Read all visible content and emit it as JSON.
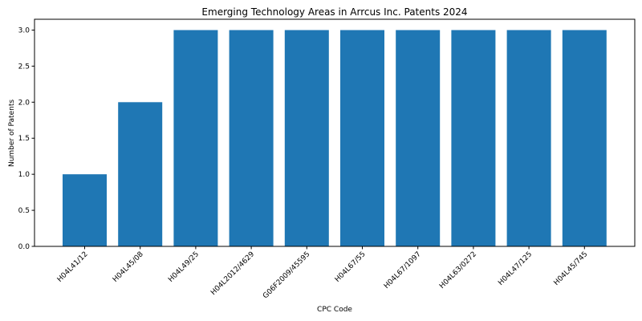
{
  "chart_data": {
    "type": "bar",
    "title": "Emerging Technology Areas in Arrcus Inc. Patents 2024",
    "xlabel": "CPC Code",
    "ylabel": "Number of Patents",
    "categories": [
      "H04L41/12",
      "H04L45/08",
      "H04L49/25",
      "H04L2012/4629",
      "G06F2009/45595",
      "H04L67/55",
      "H04L67/1097",
      "H04L63/0272",
      "H04L47/125",
      "H04L45/745"
    ],
    "values": [
      1,
      2,
      3,
      3,
      3,
      3,
      3,
      3,
      3,
      3
    ],
    "ylim": [
      0,
      3.15
    ],
    "yticks": [
      "0.0",
      "0.5",
      "1.0",
      "1.5",
      "2.0",
      "2.5",
      "3.0"
    ],
    "grid": false,
    "colors": {
      "bar": "#1f77b4"
    }
  }
}
